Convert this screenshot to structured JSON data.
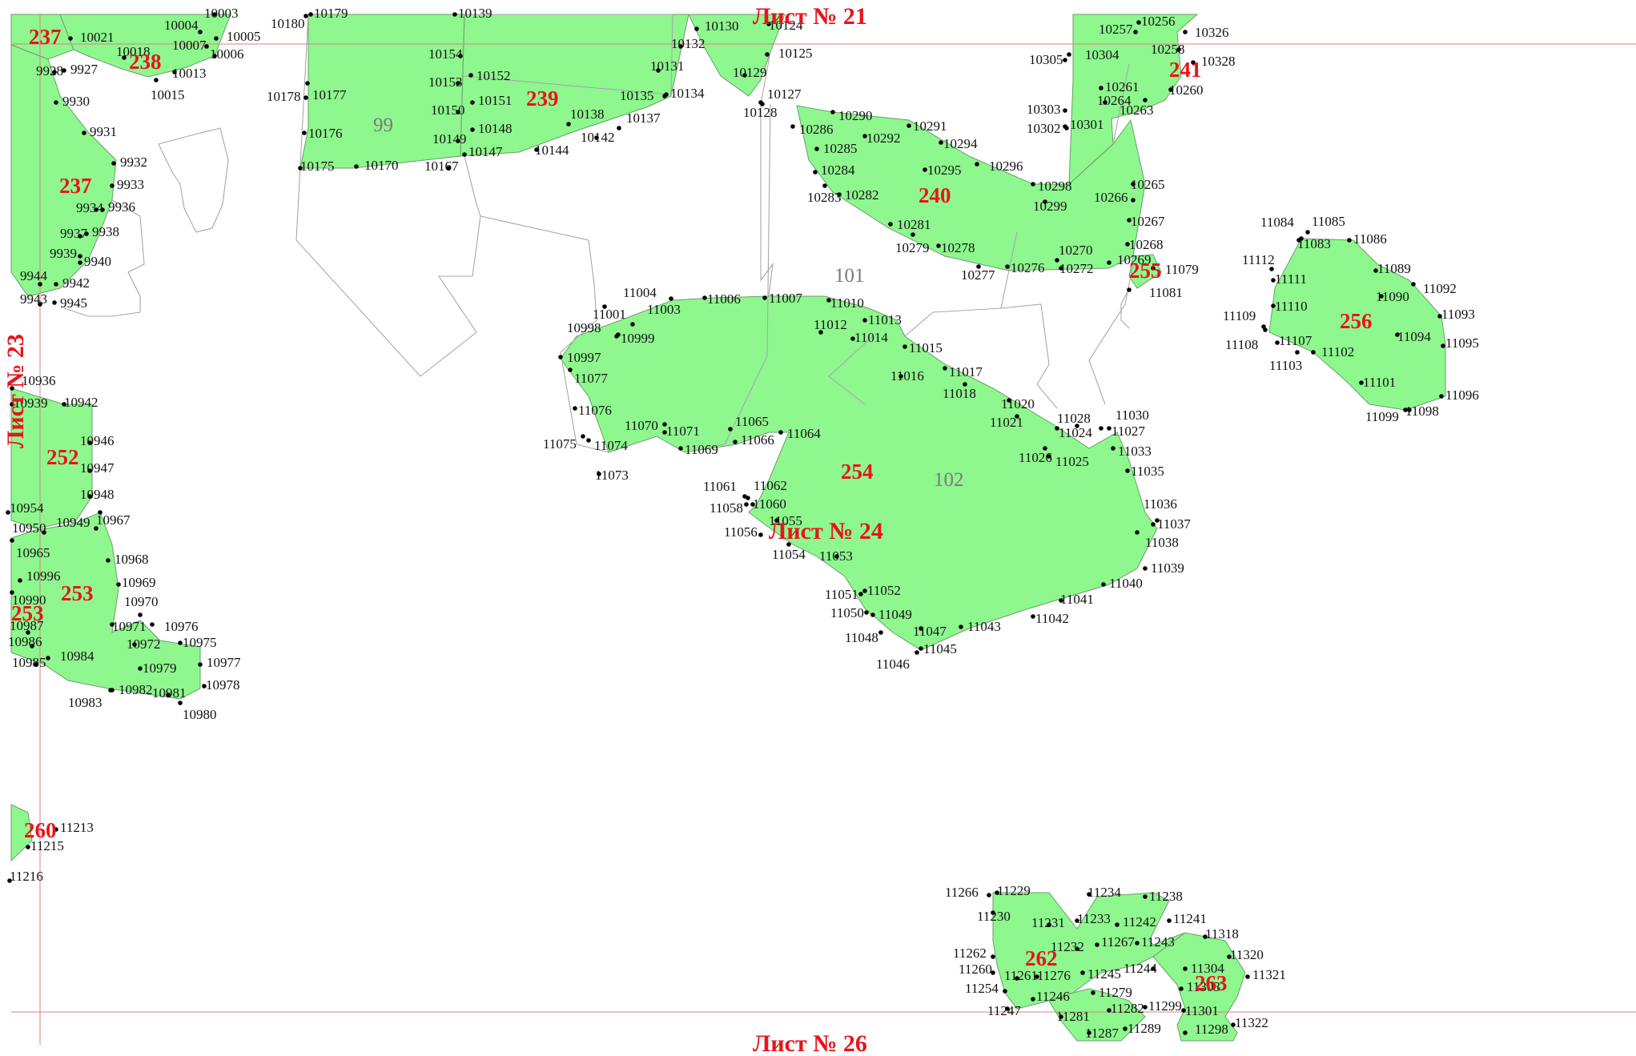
{
  "colors": {
    "parcel_fill": "#8ef78e",
    "label_red": "#e8141b",
    "frame_line": "#d98080",
    "boundary_gray": "#a8a8a8"
  },
  "sheets": {
    "top": "Лист № 21",
    "left": "Лист № 23",
    "center": "Лист № 24",
    "bottom": "Лист № 26"
  },
  "parcels": [
    "237",
    "238",
    "239",
    "240",
    "241",
    "237",
    "252",
    "253",
    "253",
    "254",
    "255",
    "256",
    "260",
    "262",
    "263"
  ],
  "blocks": [
    "99",
    "101",
    "102"
  ],
  "points": [
    "10021",
    "10018",
    "10004",
    "10007",
    "10005",
    "10006",
    "10013",
    "10015",
    "10003",
    "9928",
    "9927",
    "9930",
    "9931",
    "9932",
    "9933",
    "9934",
    "9936",
    "9937",
    "9938",
    "9939",
    "9940",
    "9944",
    "9942",
    "9943",
    "9945",
    "10180",
    "10179",
    "10178",
    "10177",
    "10176",
    "10175",
    "10170",
    "10167",
    "10149",
    "10147",
    "10150",
    "10153",
    "10154",
    "10139",
    "10152",
    "10151",
    "10148",
    "10144",
    "10142",
    "10138",
    "10137",
    "10135",
    "10134",
    "10131",
    "10132",
    "10130",
    "10124",
    "10125",
    "10129",
    "10127",
    "10128",
    "10257",
    "10256",
    "10326",
    "10304",
    "10305",
    "10258",
    "10328",
    "10261",
    "10260",
    "10263",
    "10264",
    "10303",
    "10301",
    "10302",
    "10290",
    "10286",
    "10291",
    "10292",
    "10294",
    "10285",
    "10296",
    "10284",
    "10295",
    "10298",
    "10283",
    "10282",
    "10299",
    "10266",
    "10265",
    "10267",
    "10281",
    "10268",
    "10279",
    "10278",
    "10270",
    "10269",
    "10276",
    "10272",
    "10277",
    "11079",
    "11081",
    "11004",
    "11001",
    "11003",
    "11006",
    "11007",
    "11010",
    "11013",
    "11012",
    "11014",
    "10998",
    "10999",
    "10997",
    "11077",
    "11015",
    "11016",
    "11017",
    "11018",
    "11020",
    "11021",
    "11028",
    "11030",
    "11027",
    "11024",
    "11033",
    "11026",
    "11025",
    "11035",
    "11076",
    "11070",
    "11071",
    "11065",
    "11064",
    "11075",
    "11074",
    "11069",
    "11066",
    "11073",
    "11061",
    "11062",
    "11060",
    "11058",
    "11055",
    "11056",
    "11054",
    "11053",
    "11036",
    "11037",
    "11038",
    "11039",
    "11040",
    "11041",
    "11042",
    "11051",
    "11052",
    "11050",
    "11049",
    "11047",
    "11043",
    "11048",
    "11045",
    "11046",
    "11084",
    "11085",
    "11083",
    "11086",
    "11112",
    "11089",
    "11111",
    "11092",
    "11090",
    "11109",
    "11110",
    "11093",
    "11094",
    "11095",
    "11108",
    "11107",
    "11102",
    "11103",
    "11101",
    "11096",
    "11099",
    "11098",
    "10936",
    "10939",
    "10942",
    "10946",
    "10947",
    "10948",
    "10954",
    "10949",
    "10950",
    "10967",
    "10965",
    "10968",
    "10996",
    "10969",
    "10990",
    "10970",
    "10987",
    "10971",
    "10976",
    "10972",
    "10975",
    "10986",
    "10984",
    "10977",
    "10985",
    "10979",
    "10978",
    "10982",
    "10981",
    "10983",
    "10980",
    "11213",
    "11215",
    "11216",
    "11266",
    "11229",
    "11234",
    "11238",
    "11230",
    "11231",
    "11233",
    "11242",
    "11241",
    "11318",
    "11262",
    "11232",
    "11267",
    "11243",
    "11320",
    "11244",
    "11304",
    "11260",
    "11261",
    "11276",
    "11245",
    "11321",
    "11254",
    "11246",
    "11279",
    "11303",
    "11247",
    "11282",
    "11299",
    "11301",
    "11281",
    "11287",
    "11289",
    "11298",
    "11322"
  ]
}
